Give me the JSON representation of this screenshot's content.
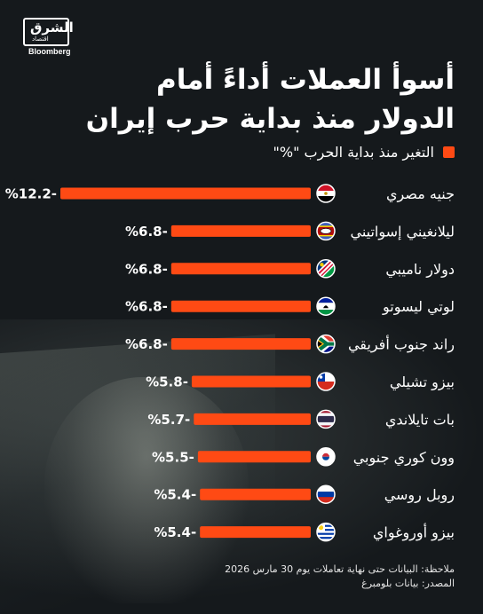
{
  "brand": {
    "logo_arabic": "الشرق",
    "logo_arabic_sub": "اقتصاد",
    "logo_english": "Bloomberg"
  },
  "title_lines": [
    "أسوأ العملات أداءً أمام",
    "الدولار منذ بداية حرب إيران"
  ],
  "legend_label": "التغير منذ بداية الحرب \"%\"",
  "note_line": "ملاحظة: البيانات حتى نهاية تعاملات يوم 30 مارس 2026",
  "source_line": "المصدر: بيانات بلومبرغ",
  "colors": {
    "bar": "#ff4a14",
    "background": "#15191c",
    "text": "#ffffff"
  },
  "chart_data": {
    "type": "bar",
    "orientation": "horizontal",
    "categories": [
      "جنيه مصري",
      "ليلانغيني إسواتيني",
      "دولار ناميبي",
      "لوتي ليسوتو",
      "راند جنوب أفريقي",
      "بيزو تشيلي",
      "بات تايلاندي",
      "وون كوري جنوبي",
      "روبل روسي",
      "بيزو أوروغواي"
    ],
    "values": [
      -12.2,
      -6.8,
      -6.8,
      -6.8,
      -6.8,
      -5.8,
      -5.7,
      -5.5,
      -5.4,
      -5.4
    ],
    "value_labels": [
      "%12.2-",
      "%6.8-",
      "%6.8-",
      "%6.8-",
      "%6.8-",
      "%5.8-",
      "%5.7-",
      "%5.5-",
      "%5.4-",
      "%5.4-"
    ],
    "flags": [
      "egypt-flag",
      "eswatini-flag",
      "namibia-flag",
      "lesotho-flag",
      "south-africa-flag",
      "chile-flag",
      "thailand-flag",
      "south-korea-flag",
      "russia-flag",
      "uruguay-flag"
    ],
    "xlim": [
      -12.2,
      0
    ],
    "grid": false,
    "legend_position": "top-right"
  }
}
